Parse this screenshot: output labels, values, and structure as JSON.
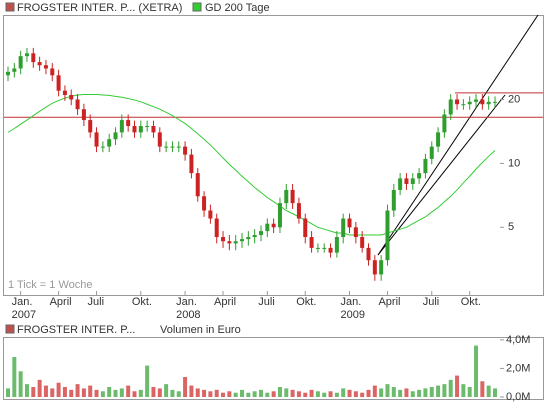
{
  "chart_data": [
    {
      "type": "candlestick",
      "note_text": "1 Tick = 1 Woche",
      "categories": [
        null,
        null,
        "Jan. 2007",
        null,
        null,
        null,
        null,
        null,
        "April",
        null,
        null,
        null,
        null,
        null,
        "Juli",
        null,
        null,
        null,
        null,
        null,
        null,
        "Okt.",
        null,
        null,
        null,
        null,
        null,
        null,
        "Jan. 2008",
        null,
        null,
        null,
        null,
        null,
        "April",
        null,
        null,
        null,
        null,
        null,
        null,
        "Juli",
        null,
        null,
        null,
        null,
        null,
        "Okt.",
        null,
        null,
        null,
        null,
        null,
        null,
        "Jan. 2009",
        null,
        null,
        null,
        null,
        null,
        "April",
        null,
        null,
        null,
        null,
        null,
        null,
        "Juli",
        null,
        null,
        null,
        null,
        null,
        "Okt.",
        null,
        null,
        null,
        null
      ],
      "series": [
        {
          "name": "FROGSTER INTER. P... (XETRA)",
          "color": "#c0504d",
          "up_color": "#2e9e2e",
          "down_color": "#cc2222",
          "open": [
            26,
            27,
            28,
            32,
            33,
            30,
            29,
            28,
            26,
            22,
            21,
            20,
            18,
            16,
            14,
            12,
            12,
            13,
            14,
            16,
            15,
            14,
            15,
            15,
            14,
            12,
            12,
            12,
            12,
            11,
            9,
            7,
            6,
            5.5,
            4.5,
            4.3,
            4.2,
            4.3,
            4.4,
            4.5,
            4.6,
            4.8,
            5.2,
            5,
            6.5,
            7.5,
            6.5,
            5.5,
            4.5,
            4,
            4,
            4,
            3.8,
            4.5,
            5.5,
            5,
            4.5,
            4,
            3.5,
            3,
            3.5,
            6,
            7.5,
            8.5,
            8,
            8.5,
            9,
            10.5,
            12,
            14,
            17,
            20,
            19,
            19,
            19.5,
            20,
            19,
            19.5
          ],
          "high": [
            28.6,
            29.7,
            33.9,
            35,
            35,
            31.8,
            30.7,
            29.7,
            27.6,
            23.3,
            22.3,
            21.2,
            19.1,
            17,
            14.8,
            12.7,
            13.8,
            14.8,
            17,
            17,
            15.9,
            15.9,
            15.9,
            15.9,
            14.8,
            12.7,
            12.7,
            12.7,
            12.7,
            11.7,
            9.5,
            7.4,
            6.4,
            5.8,
            4.8,
            4.6,
            4.6,
            4.7,
            4.8,
            4.9,
            5.1,
            5.5,
            5.5,
            6.9,
            8,
            8,
            6.9,
            5.8,
            4.8,
            4.2,
            4.2,
            4.2,
            4.8,
            5.8,
            5.8,
            5.3,
            4.8,
            4.2,
            3.7,
            3.7,
            6.4,
            8,
            9,
            9,
            9,
            9.5,
            11.1,
            12.7,
            14.8,
            18,
            21.2,
            21.2,
            20.1,
            20.7,
            21.2,
            21.2,
            20.7,
            20.7
          ],
          "low": [
            24.4,
            25.4,
            26.3,
            30.1,
            28.2,
            27.3,
            26.3,
            24.4,
            20.7,
            19.7,
            18.8,
            16.9,
            15,
            13.2,
            11.3,
            11.3,
            11.3,
            12.2,
            13.2,
            14.1,
            13.2,
            13.2,
            14.1,
            13.2,
            11.3,
            11.3,
            11.3,
            11.3,
            10.3,
            8.5,
            6.6,
            5.6,
            5.2,
            4.2,
            4,
            3.9,
            3.9,
            4,
            4.1,
            4.2,
            4.3,
            4.5,
            4.7,
            4.7,
            6.1,
            6.1,
            5.2,
            4.2,
            3.8,
            3.8,
            3.8,
            3.6,
            3.6,
            4.2,
            4.7,
            4.2,
            3.8,
            3.3,
            2.8,
            2.8,
            3.3,
            5.6,
            7.1,
            7.5,
            7.5,
            8,
            8.5,
            9.9,
            11.3,
            13.2,
            16,
            17.9,
            17.9,
            17.9,
            18.3,
            17.9,
            17.9,
            18.3
          ],
          "close": [
            27,
            28,
            32,
            33,
            30,
            29,
            28,
            26,
            22,
            21,
            20,
            18,
            16,
            14,
            12,
            12,
            13,
            14,
            16,
            15,
            14,
            15,
            15,
            14,
            12,
            12,
            12,
            12,
            11,
            9,
            7,
            6,
            5.5,
            4.5,
            4.3,
            4.2,
            4.3,
            4.4,
            4.5,
            4.6,
            4.8,
            5.2,
            5,
            6.5,
            7.5,
            6.5,
            5.5,
            4.5,
            4,
            4,
            4,
            3.8,
            4.5,
            5.5,
            5,
            4.5,
            4,
            3.5,
            3,
            3.5,
            6,
            7.5,
            8.5,
            8,
            8.5,
            9,
            10.5,
            12,
            14,
            17,
            20,
            19,
            19,
            19.5,
            20,
            19,
            19.5,
            19.5
          ]
        },
        {
          "name": "GD 200 Tage",
          "color": "#33cc33",
          "values": [
            14,
            14.6,
            15.3,
            16,
            16.8,
            17.6,
            18.4,
            19.2,
            19.8,
            20.3,
            20.7,
            21,
            21.1,
            21.1,
            21.1,
            21,
            20.9,
            20.7,
            20.5,
            20.2,
            19.9,
            19.5,
            19,
            18.5,
            18,
            17.4,
            16.8,
            16.1,
            15.4,
            14.6,
            13.8,
            13,
            12.2,
            11.4,
            10.6,
            9.9,
            9.3,
            8.7,
            8.2,
            7.7,
            7.3,
            6.9,
            6.6,
            6.3,
            6,
            5.8,
            5.6,
            5.4,
            5.2,
            5,
            4.9,
            4.8,
            4.7,
            4.7,
            4.6,
            4.6,
            4.6,
            4.6,
            4.6,
            4.6,
            4.7,
            4.8,
            4.9,
            5,
            5.2,
            5.4,
            5.6,
            5.9,
            6.2,
            6.6,
            7,
            7.5,
            8.1,
            8.7,
            9.4,
            10.1,
            10.8,
            11.5
          ]
        }
      ],
      "hlines": {
        "values": [
          16.5,
          21.5
        ],
        "color": "#c03030"
      },
      "log_scale": true,
      "ylim": [
        2.4,
        50
      ],
      "yticks": [
        5,
        10,
        20
      ]
    },
    {
      "type": "bar",
      "title": "Volumen in Euro",
      "series": [
        {
          "name": "FROGSTER INTER. P...",
          "color": "#c0504d",
          "values": [
            600000,
            2800000,
            1800000,
            900000,
            700000,
            1200000,
            800000,
            600000,
            1000000,
            700000,
            500000,
            900000,
            600000,
            800000,
            500000,
            400000,
            700000,
            500000,
            600000,
            800000,
            400000,
            500000,
            2200000,
            700000,
            600000,
            900000,
            500000,
            400000,
            1400000,
            800000,
            600000,
            500000,
            400000,
            500000,
            300000,
            400000,
            300000,
            500000,
            300000,
            400000,
            500000,
            300000,
            400000,
            700000,
            600000,
            500000,
            400000,
            300000,
            500000,
            400000,
            300000,
            400000,
            300000,
            600000,
            500000,
            400000,
            300000,
            500000,
            800000,
            600000,
            900000,
            700000,
            500000,
            600000,
            400000,
            500000,
            600000,
            700000,
            800000,
            900000,
            1200000,
            1500000,
            900000,
            700000,
            3600000,
            1100000,
            800000,
            600000
          ]
        }
      ],
      "ylim": [
        0,
        4200000
      ],
      "yticks": [
        {
          "value": 0,
          "label": "0,0M"
        },
        {
          "value": 2000000,
          "label": "2,0M"
        },
        {
          "value": 4000000,
          "label": "4,0M"
        }
      ]
    }
  ]
}
